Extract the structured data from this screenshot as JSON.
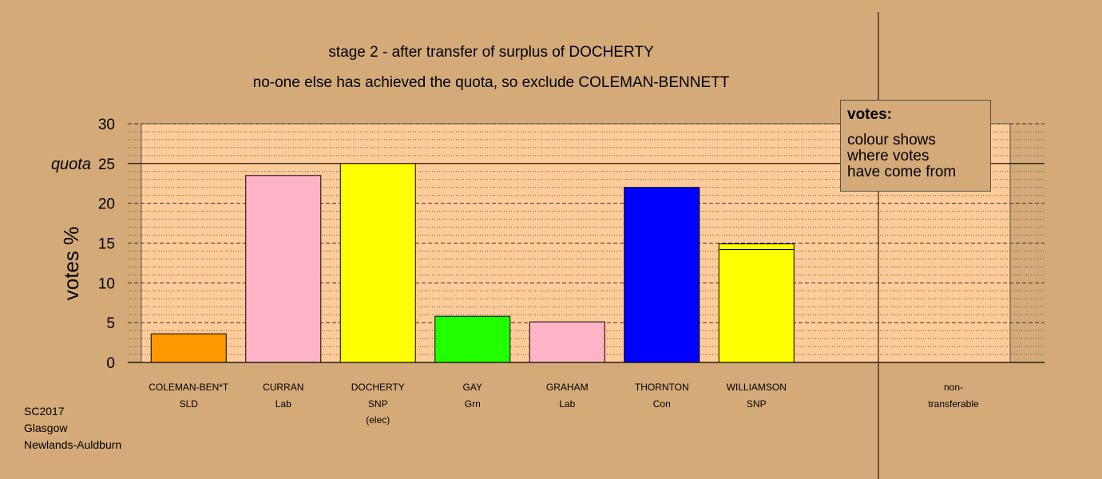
{
  "chart_data": {
    "type": "bar",
    "title": "stage 2 - after transfer of surplus of DOCHERTY",
    "subtitle": "no-one else has achieved the quota, so exclude COLEMAN-BENNETT",
    "ylabel": "votes %",
    "ylim": [
      0,
      30
    ],
    "yticks": [
      "0",
      "5",
      "10",
      "15",
      "20",
      "25",
      "30"
    ],
    "quota": {
      "label": "quota",
      "value": 25
    },
    "candidates": [
      {
        "name": "COLEMAN-BEN*T",
        "party": "SLD",
        "note": "",
        "segments": [
          {
            "value": 3.6,
            "color": "#ff9900"
          }
        ]
      },
      {
        "name": "CURRAN",
        "party": "Lab",
        "note": "",
        "segments": [
          {
            "value": 23.5,
            "color": "#ffb3c6"
          }
        ]
      },
      {
        "name": "DOCHERTY",
        "party": "SNP",
        "note": "(elec)",
        "segments": [
          {
            "value": 25.0,
            "color": "#ffff00"
          }
        ]
      },
      {
        "name": "GAY",
        "party": "Grn",
        "note": "",
        "segments": [
          {
            "value": 5.8,
            "color": "#22ff00"
          }
        ]
      },
      {
        "name": "GRAHAM",
        "party": "Lab",
        "note": "",
        "segments": [
          {
            "value": 5.1,
            "color": "#ffb3c6"
          }
        ]
      },
      {
        "name": "THORNTON",
        "party": "Con",
        "note": "",
        "segments": [
          {
            "value": 22.0,
            "color": "#0000ff"
          }
        ]
      },
      {
        "name": "WILLIAMSON",
        "party": "SNP",
        "note": "",
        "segments": [
          {
            "value": 14.2,
            "color": "#ffff00"
          },
          {
            "value": 0.7,
            "color": "#ffff00"
          }
        ]
      }
    ],
    "nontransferable": {
      "label_line1": "non-",
      "label_line2": "transferable",
      "value": 0
    },
    "grid": true,
    "plot_background": "#ffcc99",
    "legend": {
      "title": "votes:",
      "lines": [
        "colour shows",
        "where votes",
        "have come from"
      ],
      "position": "top-right"
    }
  },
  "footer": {
    "line1": "SC2017",
    "line2": "Glasgow",
    "line3": "Newlands-Auldburn"
  }
}
